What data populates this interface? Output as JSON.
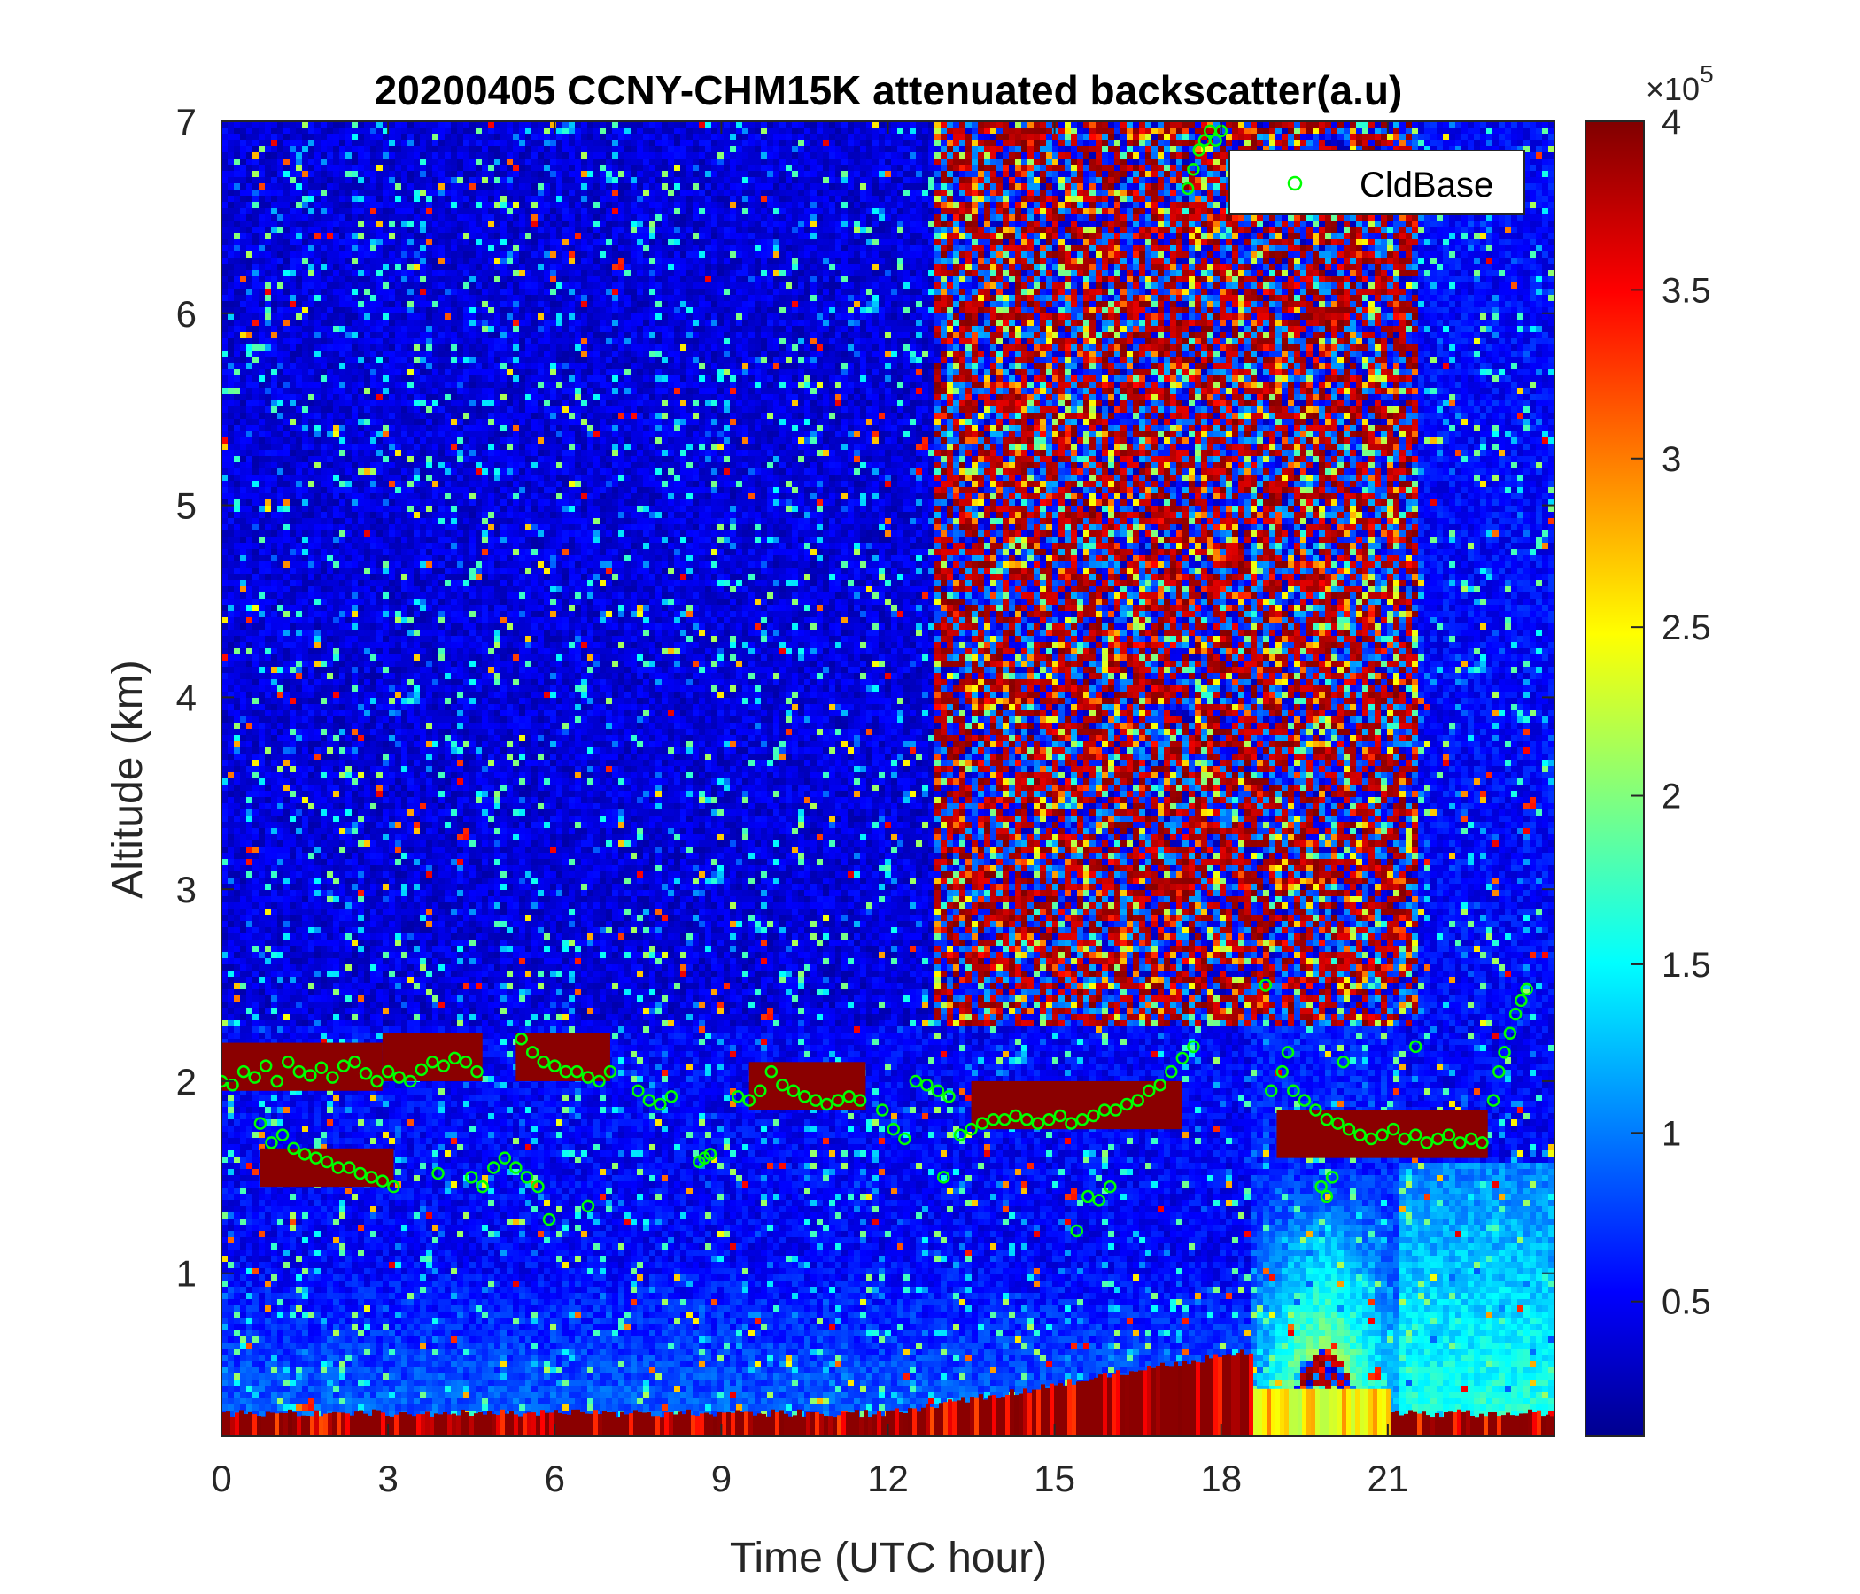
{
  "chart_data": {
    "type": "heatmap",
    "title": "20200405 CCNY-CHM15K attenuated backscatter(a.u)",
    "xlabel": "Time (UTC hour)",
    "ylabel": "Altitude (km)",
    "xlim": [
      0,
      24
    ],
    "ylim": [
      0.15,
      7
    ],
    "xticks": [
      0,
      3,
      6,
      9,
      12,
      15,
      18,
      21
    ],
    "yticks": [
      1,
      2,
      3,
      4,
      5,
      6,
      7
    ],
    "legend": {
      "position": "top-right",
      "entries": [
        "CldBase"
      ]
    },
    "colormap": "jet",
    "colorbar": {
      "lim": [
        0.1,
        4
      ],
      "ticks": [
        0.5,
        1,
        1.5,
        2,
        2.5,
        3,
        3.5,
        4
      ],
      "exponent_label": "×10",
      "exponent_power": "5"
    },
    "background_regions": [
      {
        "x": [
          0,
          12.8
        ],
        "y": [
          2.3,
          7
        ],
        "level": 0.45
      },
      {
        "x": [
          12.8,
          21.5
        ],
        "y": [
          2.3,
          7
        ],
        "level": 3.2
      },
      {
        "x": [
          21.5,
          24
        ],
        "y": [
          2.3,
          7
        ],
        "level": 0.6
      }
    ],
    "cloud_layers": [
      {
        "x": [
          0,
          2.9
        ],
        "y": [
          1.95,
          2.2
        ]
      },
      {
        "x": [
          2.9,
          4.7
        ],
        "y": [
          2.0,
          2.25
        ]
      },
      {
        "x": [
          5.3,
          7.0
        ],
        "y": [
          2.0,
          2.25
        ]
      },
      {
        "x": [
          9.5,
          11.6
        ],
        "y": [
          1.85,
          2.1
        ]
      },
      {
        "x": [
          0.7,
          3.1
        ],
        "y": [
          1.45,
          1.65
        ]
      },
      {
        "x": [
          13.5,
          17.3
        ],
        "y": [
          1.75,
          2.0
        ]
      },
      {
        "x": [
          19.0,
          22.8
        ],
        "y": [
          1.6,
          1.85
        ]
      }
    ],
    "surface_layer": {
      "y": [
        0.15,
        0.25
      ],
      "level": 3.9
    },
    "aerosol_plume": {
      "x": [
        18.5,
        21.0
      ],
      "peak_x": 19.8,
      "peak_y": 1.2,
      "level": 2.5
    },
    "series": [
      {
        "name": "CldBase",
        "color": "#00ff00",
        "x": [
          0.0,
          0.2,
          0.4,
          0.6,
          0.8,
          1.0,
          1.2,
          1.4,
          1.6,
          1.8,
          2.0,
          2.2,
          2.4,
          2.6,
          2.8,
          3.0,
          3.2,
          3.4,
          3.6,
          3.8,
          4.0,
          4.2,
          4.4,
          4.6,
          0.7,
          0.9,
          1.1,
          1.3,
          1.5,
          1.7,
          1.9,
          2.1,
          2.3,
          2.5,
          2.7,
          2.9,
          3.1,
          3.9,
          4.5,
          4.7,
          4.9,
          5.1,
          5.3,
          5.5,
          5.7,
          5.9,
          6.6,
          5.4,
          5.6,
          5.8,
          6.0,
          6.2,
          6.4,
          6.6,
          6.8,
          7.0,
          7.5,
          7.7,
          7.9,
          8.1,
          8.6,
          8.7,
          8.8,
          9.3,
          9.5,
          9.7,
          9.9,
          10.1,
          10.3,
          10.5,
          10.7,
          10.9,
          11.1,
          11.3,
          11.5,
          11.9,
          12.1,
          12.3,
          12.5,
          12.7,
          12.9,
          13.1,
          13.0,
          13.3,
          13.5,
          13.7,
          13.9,
          14.1,
          14.3,
          14.5,
          14.7,
          14.9,
          15.1,
          15.3,
          15.5,
          15.7,
          15.9,
          16.1,
          16.3,
          16.5,
          16.7,
          16.9,
          17.1,
          17.3,
          17.5,
          15.6,
          15.8,
          16.0,
          15.4,
          17.4,
          17.5,
          17.6,
          17.7,
          17.8,
          17.9,
          18.0,
          18.8,
          18.9,
          19.1,
          19.3,
          19.5,
          19.7,
          19.9,
          20.1,
          20.3,
          20.5,
          20.7,
          20.9,
          21.1,
          21.3,
          21.5,
          21.7,
          21.9,
          22.1,
          22.3,
          22.5,
          22.7,
          19.8,
          19.9,
          20.0,
          19.2,
          20.2,
          21.5,
          22.9,
          23.0,
          23.1,
          23.2,
          23.3,
          23.4,
          23.5
        ],
        "y": [
          2.0,
          1.98,
          2.05,
          2.02,
          2.08,
          2.0,
          2.1,
          2.05,
          2.03,
          2.07,
          2.02,
          2.08,
          2.1,
          2.04,
          2.0,
          2.05,
          2.02,
          2.0,
          2.06,
          2.1,
          2.08,
          2.12,
          2.1,
          2.05,
          1.78,
          1.68,
          1.72,
          1.65,
          1.62,
          1.6,
          1.58,
          1.55,
          1.55,
          1.52,
          1.5,
          1.48,
          1.45,
          1.52,
          1.5,
          1.45,
          1.55,
          1.6,
          1.55,
          1.5,
          1.45,
          1.28,
          1.35,
          2.22,
          2.15,
          2.1,
          2.08,
          2.05,
          2.05,
          2.02,
          2.0,
          2.05,
          1.95,
          1.9,
          1.88,
          1.92,
          1.58,
          1.6,
          1.62,
          1.92,
          1.9,
          1.95,
          2.05,
          1.98,
          1.95,
          1.92,
          1.9,
          1.88,
          1.9,
          1.92,
          1.9,
          1.85,
          1.75,
          1.7,
          2.0,
          1.98,
          1.95,
          1.92,
          1.5,
          1.72,
          1.75,
          1.78,
          1.8,
          1.8,
          1.82,
          1.8,
          1.78,
          1.8,
          1.82,
          1.78,
          1.8,
          1.82,
          1.85,
          1.85,
          1.88,
          1.9,
          1.95,
          1.98,
          2.05,
          2.12,
          2.18,
          1.4,
          1.38,
          1.45,
          1.22,
          6.65,
          6.75,
          6.85,
          6.9,
          6.95,
          6.9,
          6.95,
          2.5,
          1.95,
          2.05,
          1.95,
          1.9,
          1.85,
          1.8,
          1.78,
          1.75,
          1.72,
          1.7,
          1.72,
          1.75,
          1.7,
          1.72,
          1.68,
          1.7,
          1.72,
          1.68,
          1.7,
          1.68,
          1.45,
          1.4,
          1.5,
          2.15,
          2.1,
          2.18,
          1.9,
          2.05,
          2.15,
          2.25,
          2.35,
          2.42,
          2.48
        ]
      }
    ]
  }
}
